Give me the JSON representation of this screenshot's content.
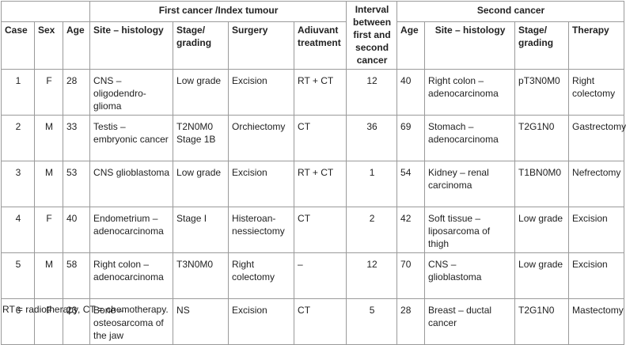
{
  "header": {
    "first_group": "First cancer /Index tumour",
    "interval": "Interval between first and second cancer",
    "second_group": "Second cancer",
    "case": "Case",
    "sex": "Sex",
    "age1": "Age",
    "site1": "Site – histology",
    "stage1": "Stage/ grading",
    "surgery": "Surgery",
    "adjuvant": "Adiuvant treatment",
    "age2": "Age",
    "site2": "Site – histology",
    "stage2": "Stage/ grading",
    "therapy": "Therapy"
  },
  "rows": [
    {
      "case": "1",
      "sex": "F",
      "age1": "28",
      "site1": "CNS – oligodendro-glioma",
      "stage1": "Low grade",
      "surgery": "Excision",
      "adjuvant": "RT + CT",
      "interval": "12",
      "age2": "40",
      "site2": "Right colon – adenocarcinoma",
      "stage2": "pT3N0M0",
      "therapy": "Right colectomy"
    },
    {
      "case": "2",
      "sex": "M",
      "age1": "33",
      "site1": "Testis – embryonic cancer",
      "stage1": "T2N0M0 Stage 1B",
      "surgery": "Orchiectomy",
      "adjuvant": "CT",
      "interval": "36",
      "age2": "69",
      "site2": "Stomach – adenocarcinoma",
      "stage2": "T2G1N0",
      "therapy": "Gastrectomy"
    },
    {
      "case": "3",
      "sex": "M",
      "age1": "53",
      "site1": "CNS glioblastoma",
      "stage1": "Low grade",
      "surgery": "Excision",
      "adjuvant": "RT + CT",
      "interval": "1",
      "age2": "54",
      "site2": "Kidney – renal carcinoma",
      "stage2": "T1BN0M0",
      "therapy": "Nefrectomy"
    },
    {
      "case": "4",
      "sex": "F",
      "age1": "40",
      "site1": "Endometrium – adenocarcinoma",
      "stage1": "Stage I",
      "surgery": "Histeroan-nessiectomy",
      "adjuvant": "CT",
      "interval": "2",
      "age2": "42",
      "site2": "Soft tissue – liposarcoma of thigh",
      "stage2": "Low grade",
      "therapy": "Excision"
    },
    {
      "case": "5",
      "sex": "M",
      "age1": "58",
      "site1": "Right colon – adenocarcinoma",
      "stage1": "T3N0M0",
      "surgery": "Right colectomy",
      "adjuvant": "–",
      "interval": "12",
      "age2": "70",
      "site2": "CNS – glioblastoma",
      "stage2": "Low grade",
      "therapy": "Excision"
    },
    {
      "case": "6",
      "sex": "F",
      "age1": "23",
      "site1": "Bone – osteosarcoma of the jaw",
      "stage1": "NS",
      "surgery": "Excision",
      "adjuvant": "CT",
      "interval": "5",
      "age2": "28",
      "site2": "Breast – ductal cancer",
      "stage2": "T2G1N0",
      "therapy": "Mastectomy"
    }
  ],
  "footnote": "RT = radiotherapy, CT = chemotherapy."
}
